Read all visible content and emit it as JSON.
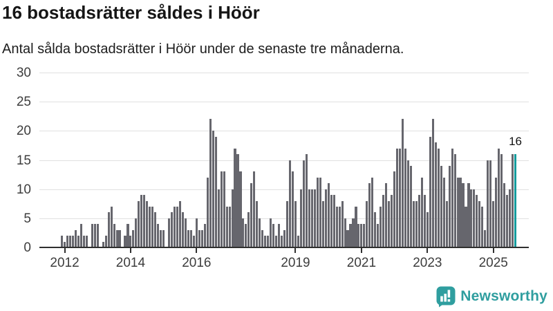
{
  "header": {
    "title": "16 bostadsrätter såldes i Höör",
    "subtitle": "Antal sålda bostadsrätter i Höör under de senaste tre månaderna."
  },
  "annotation": {
    "last_value_label": "16"
  },
  "branding": {
    "name": "Newsworthy",
    "icon": "newsworthy-bubble-chart-icon"
  },
  "colors": {
    "bar": "#66666d",
    "highlight_bar": "#149c9d",
    "brand": "#2f9e9f",
    "grid": "#e0e0e0",
    "axis": "#2f2f2f",
    "axis_text": "#3d3d3d"
  },
  "chart_data": {
    "type": "bar",
    "title": "16 bostadsrätter såldes i Höör",
    "subtitle": "Antal sålda bostadsrätter i Höör under de senaste tre månaderna.",
    "unit": "sålda bostadsrätter per månad (rullande tre månader)",
    "frequency": "monthly",
    "x_start": "2011-12",
    "x_end": "2025-09",
    "grid": true,
    "legend": false,
    "ylim": [
      0,
      30
    ],
    "yticks": [
      0,
      5,
      10,
      15,
      20,
      25,
      30
    ],
    "xticks": [
      {
        "label": "2012",
        "month_index": 1
      },
      {
        "label": "2014",
        "month_index": 25
      },
      {
        "label": "2016",
        "month_index": 49
      },
      {
        "label": "2019",
        "month_index": 85
      },
      {
        "label": "2021",
        "month_index": 109
      },
      {
        "label": "2023",
        "month_index": 133
      },
      {
        "label": "2025",
        "month_index": 157
      }
    ],
    "highlight_last_bar": true,
    "last_value": 16,
    "values": [
      2,
      1,
      2,
      2,
      2,
      3,
      2,
      4,
      2,
      2,
      0,
      4,
      4,
      4,
      0,
      1,
      2,
      6,
      7,
      4,
      3,
      3,
      0,
      2,
      4,
      2,
      3,
      5,
      8,
      9,
      9,
      8,
      7,
      7,
      6,
      4,
      3,
      3,
      0,
      5,
      6,
      7,
      7,
      8,
      6,
      5,
      3,
      3,
      2,
      5,
      3,
      3,
      4,
      12,
      22,
      20,
      19,
      10,
      13,
      13,
      7,
      7,
      10,
      17,
      16,
      13,
      5,
      4,
      6,
      11,
      13,
      8,
      5,
      3,
      2,
      2,
      5,
      4,
      2,
      4,
      2,
      3,
      8,
      15,
      13,
      8,
      2,
      10,
      15,
      16,
      10,
      10,
      10,
      12,
      12,
      8,
      10,
      11,
      9,
      9,
      7,
      7,
      8,
      5,
      3,
      4,
      5,
      7,
      4,
      4,
      4,
      8,
      11,
      12,
      6,
      4,
      7,
      9,
      11,
      8,
      9,
      13,
      17,
      17,
      22,
      17,
      15,
      14,
      8,
      8,
      9,
      12,
      9,
      6,
      19,
      22,
      18,
      17,
      14,
      12,
      8,
      14,
      17,
      16,
      12,
      12,
      11,
      7,
      11,
      10,
      10,
      9,
      8,
      7,
      3,
      15,
      15,
      8,
      12,
      17,
      16,
      11,
      9,
      10,
      16,
      16
    ]
  }
}
